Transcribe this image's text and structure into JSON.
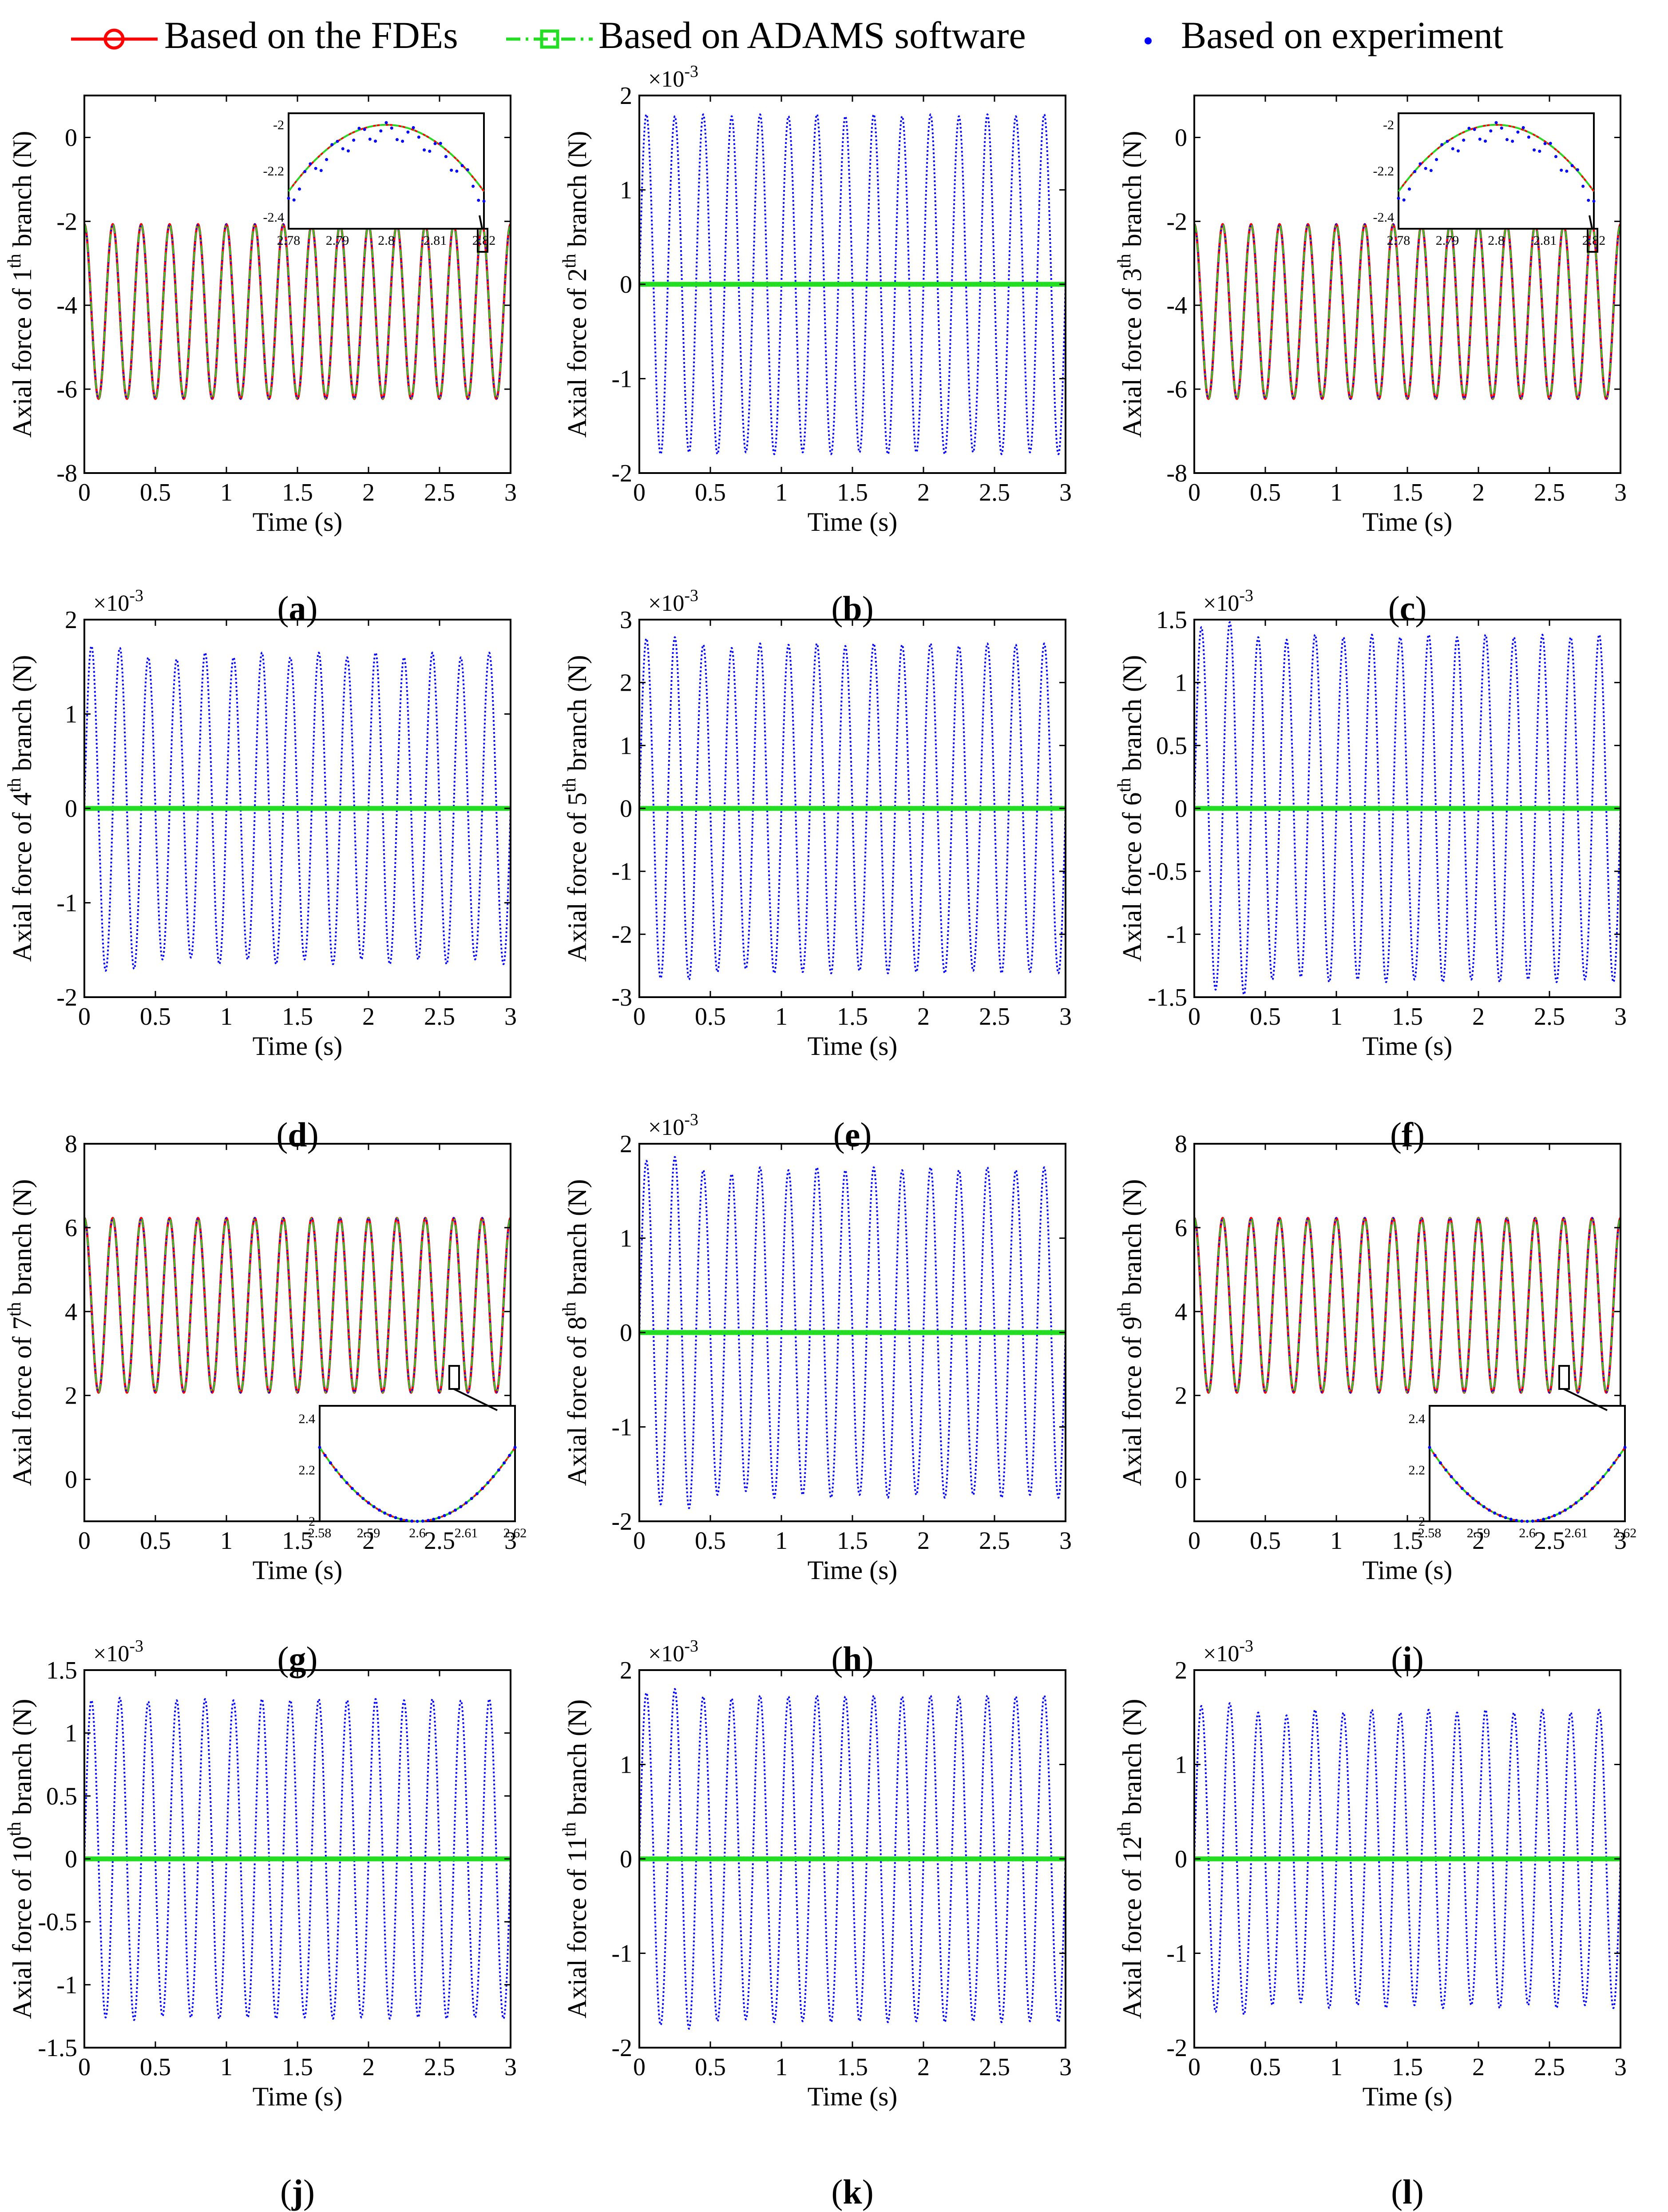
{
  "legend": {
    "entries": [
      {
        "label": "Based on the FDEs",
        "color": "#ff0000",
        "marker": "circle",
        "style": "solid"
      },
      {
        "label": "Based on ADAMS software",
        "color": "#00dd00",
        "marker": "square",
        "style": "dashdot"
      },
      {
        "label": "Based on experiment",
        "color": "#0000ff",
        "marker": "dot",
        "style": "dotted"
      }
    ]
  },
  "colors": {
    "fdes": "#ff0000",
    "adams": "#22dd22",
    "experiment": "#0000ff",
    "axis": "#000000"
  },
  "chart_data": [
    {
      "panel": "a",
      "type": "line",
      "xlabel": "Time (s)",
      "ylabel_pre": "Axial force of 1",
      "ylabel_sup": "th",
      "ylabel_post": " branch (N)",
      "exponent": null,
      "xlim": [
        0,
        3
      ],
      "ylim": [
        -8,
        1
      ],
      "xticks": [
        0,
        0.5,
        1,
        1.5,
        2,
        2.5,
        3
      ],
      "xtick_labels": [
        "0",
        "0.5",
        "1",
        "1.5",
        "2",
        "2.5",
        "3"
      ],
      "yticks": [
        -8,
        -6,
        -4,
        -2,
        0
      ],
      "ytick_labels": [
        "-8",
        "-6",
        "-4",
        "-2",
        "0"
      ],
      "period": 0.2,
      "centre": -4.15,
      "amplitude": 2.08,
      "phase": 0.5,
      "exp_amplitudes": [],
      "inset": {
        "xlim": [
          2.78,
          2.82
        ],
        "ylim": [
          -2.45,
          -1.95
        ],
        "xticks": [
          2.78,
          2.79,
          2.8,
          2.81,
          2.82
        ],
        "xtick_labels": [
          "2.78",
          "2.79",
          "2.8",
          "2.81",
          "2.82"
        ],
        "yticks": [
          -2.4,
          -2.2,
          -2
        ],
        "ytick_labels": [
          "-2.4",
          "-2.2",
          "-2"
        ],
        "mode": "peak"
      }
    },
    {
      "panel": "b",
      "type": "line",
      "xlabel": "Time (s)",
      "ylabel_pre": "Axial force of 2",
      "ylabel_sup": "th",
      "ylabel_post": " branch (N)",
      "exponent": "×10",
      "exponent_sup": "-3",
      "xlim": [
        0,
        3
      ],
      "ylim": [
        -2,
        2
      ],
      "xticks": [
        0,
        0.5,
        1,
        1.5,
        2,
        2.5,
        3
      ],
      "xtick_labels": [
        "0",
        "0.5",
        "1",
        "1.5",
        "2",
        "2.5",
        "3"
      ],
      "yticks": [
        -2,
        -1,
        0,
        1,
        2
      ],
      "ytick_labels": [
        "-2",
        "-1",
        "0",
        "1",
        "2"
      ],
      "period": 0.2,
      "centre": 0,
      "amplitude": 0,
      "phase": 0.25,
      "exp_amplitudes": [
        1.8,
        1.78,
        1.8,
        1.78,
        1.8,
        1.78,
        1.8,
        1.78,
        1.8,
        1.78,
        1.8,
        1.78,
        1.8,
        1.78,
        1.8
      ],
      "inset": null
    },
    {
      "panel": "c",
      "type": "line",
      "xlabel": "Time (s)",
      "ylabel_pre": "Axial force of 3",
      "ylabel_sup": "th",
      "ylabel_post": " branch (N)",
      "exponent": null,
      "xlim": [
        0,
        3
      ],
      "ylim": [
        -8,
        1
      ],
      "xticks": [
        0,
        0.5,
        1,
        1.5,
        2,
        2.5,
        3
      ],
      "xtick_labels": [
        "0",
        "0.5",
        "1",
        "1.5",
        "2",
        "2.5",
        "3"
      ],
      "yticks": [
        -8,
        -6,
        -4,
        -2,
        0
      ],
      "ytick_labels": [
        "-8",
        "-6",
        "-4",
        "-2",
        "0"
      ],
      "period": 0.2,
      "centre": -4.15,
      "amplitude": 2.08,
      "phase": 0.5,
      "exp_amplitudes": [],
      "inset": {
        "xlim": [
          2.78,
          2.82
        ],
        "ylim": [
          -2.45,
          -1.95
        ],
        "xticks": [
          2.78,
          2.79,
          2.8,
          2.81,
          2.82
        ],
        "xtick_labels": [
          "2.78",
          "2.79",
          "2.8",
          "2.81",
          "2.82"
        ],
        "yticks": [
          -2.4,
          -2.2,
          -2
        ],
        "ytick_labels": [
          "-2.4",
          "-2.2",
          "-2"
        ],
        "mode": "peak"
      }
    },
    {
      "panel": "d",
      "type": "line",
      "xlabel": "Time (s)",
      "ylabel_pre": "Axial force of 4",
      "ylabel_sup": "th",
      "ylabel_post": " branch (N)",
      "exponent": "×10",
      "exponent_sup": "-3",
      "xlim": [
        0,
        3
      ],
      "ylim": [
        -2,
        2
      ],
      "xticks": [
        0,
        0.5,
        1,
        1.5,
        2,
        2.5,
        3
      ],
      "xtick_labels": [
        "0",
        "0.5",
        "1",
        "1.5",
        "2",
        "2.5",
        "3"
      ],
      "yticks": [
        -2,
        -1,
        0,
        1,
        2
      ],
      "ytick_labels": [
        "-2",
        "-1",
        "0",
        "1",
        "2"
      ],
      "period": 0.2,
      "centre": 0,
      "amplitude": 0,
      "phase": 0.25,
      "exp_amplitudes": [
        1.72,
        1.7,
        1.6,
        1.58,
        1.65,
        1.6,
        1.65,
        1.6,
        1.65,
        1.6,
        1.65,
        1.6,
        1.65,
        1.6,
        1.65
      ],
      "inset": null
    },
    {
      "panel": "e",
      "type": "line",
      "xlabel": "Time (s)",
      "ylabel_pre": "Axial force of 5",
      "ylabel_sup": "th",
      "ylabel_post": " branch (N)",
      "exponent": "×10",
      "exponent_sup": "-3",
      "xlim": [
        0,
        3
      ],
      "ylim": [
        -3,
        3
      ],
      "xticks": [
        0,
        0.5,
        1,
        1.5,
        2,
        2.5,
        3
      ],
      "xtick_labels": [
        "0",
        "0.5",
        "1",
        "1.5",
        "2",
        "2.5",
        "3"
      ],
      "yticks": [
        -3,
        -2,
        -1,
        0,
        1,
        2,
        3
      ],
      "ytick_labels": [
        "-3",
        "-2",
        "-1",
        "0",
        "1",
        "2",
        "3"
      ],
      "period": 0.2,
      "centre": 0,
      "amplitude": 0,
      "phase": 0.25,
      "exp_amplitudes": [
        2.7,
        2.72,
        2.6,
        2.55,
        2.62,
        2.6,
        2.62,
        2.58,
        2.62,
        2.6,
        2.62,
        2.58,
        2.62,
        2.6,
        2.62
      ],
      "inset": null
    },
    {
      "panel": "f",
      "type": "line",
      "xlabel": "Time (s)",
      "ylabel_pre": "Axial force of 6",
      "ylabel_sup": "th",
      "ylabel_post": " branch (N)",
      "exponent": "×10",
      "exponent_sup": "-3",
      "xlim": [
        0,
        3
      ],
      "ylim": [
        -1.5,
        1.5
      ],
      "xticks": [
        0,
        0.5,
        1,
        1.5,
        2,
        2.5,
        3
      ],
      "xtick_labels": [
        "0",
        "0.5",
        "1",
        "1.5",
        "2",
        "2.5",
        "3"
      ],
      "yticks": [
        -1.5,
        -1,
        -0.5,
        0,
        0.5,
        1,
        1.5
      ],
      "ytick_labels": [
        "-1.5",
        "-1",
        "-0.5",
        "0",
        "0.5",
        "1",
        "1.5"
      ],
      "period": 0.2,
      "centre": 0,
      "amplitude": 0,
      "phase": 0.25,
      "exp_amplitudes": [
        1.44,
        1.48,
        1.36,
        1.34,
        1.38,
        1.36,
        1.38,
        1.36,
        1.38,
        1.36,
        1.38,
        1.36,
        1.38,
        1.36,
        1.38
      ],
      "inset": null
    },
    {
      "panel": "g",
      "type": "line",
      "xlabel": "Time (s)",
      "ylabel_pre": "Axial force of 7",
      "ylabel_sup": "th",
      "ylabel_post": " branch (N)",
      "exponent": null,
      "xlim": [
        0,
        3
      ],
      "ylim": [
        -1,
        8
      ],
      "xticks": [
        0,
        0.5,
        1,
        1.5,
        2,
        2.5,
        3
      ],
      "xtick_labels": [
        "0",
        "0.5",
        "1",
        "1.5",
        "2",
        "2.5",
        "3"
      ],
      "yticks": [
        0,
        2,
        4,
        6,
        8
      ],
      "ytick_labels": [
        "0",
        "2",
        "4",
        "6",
        "8"
      ],
      "period": 0.2,
      "centre": 4.15,
      "amplitude": 2.08,
      "phase": 0.5,
      "exp_amplitudes": [],
      "inset": {
        "xlim": [
          2.58,
          2.62
        ],
        "ylim": [
          2.0,
          2.45
        ],
        "xticks": [
          2.58,
          2.59,
          2.6,
          2.61,
          2.62
        ],
        "xtick_labels": [
          "2.58",
          "2.59",
          "2.6",
          "2.61",
          "2.62"
        ],
        "yticks": [
          2,
          2.2,
          2.4
        ],
        "ytick_labels": [
          "2",
          "2.2",
          "2.4"
        ],
        "mode": "valley"
      }
    },
    {
      "panel": "h",
      "type": "line",
      "xlabel": "Time (s)",
      "ylabel_pre": "Axial force of 8",
      "ylabel_sup": "th",
      "ylabel_post": " branch (N)",
      "exponent": "×10",
      "exponent_sup": "-3",
      "xlim": [
        0,
        3
      ],
      "ylim": [
        -2,
        2
      ],
      "xticks": [
        0,
        0.5,
        1,
        1.5,
        2,
        2.5,
        3
      ],
      "xtick_labels": [
        "0",
        "0.5",
        "1",
        "1.5",
        "2",
        "2.5",
        "3"
      ],
      "yticks": [
        -2,
        -1,
        0,
        1,
        2
      ],
      "ytick_labels": [
        "-2",
        "-1",
        "0",
        "1",
        "2"
      ],
      "period": 0.2,
      "centre": 0,
      "amplitude": 0,
      "phase": 0.25,
      "exp_amplitudes": [
        1.82,
        1.86,
        1.72,
        1.68,
        1.75,
        1.72,
        1.75,
        1.72,
        1.75,
        1.72,
        1.75,
        1.72,
        1.75,
        1.72,
        1.75
      ],
      "inset": null
    },
    {
      "panel": "i",
      "type": "line",
      "xlabel": "Time (s)",
      "ylabel_pre": "Axial force of 9",
      "ylabel_sup": "th",
      "ylabel_post": " branch (N)",
      "exponent": null,
      "xlim": [
        0,
        3
      ],
      "ylim": [
        -1,
        8
      ],
      "xticks": [
        0,
        0.5,
        1,
        1.5,
        2,
        2.5,
        3
      ],
      "xtick_labels": [
        "0",
        "0.5",
        "1",
        "1.5",
        "2",
        "2.5",
        "3"
      ],
      "yticks": [
        0,
        2,
        4,
        6,
        8
      ],
      "ytick_labels": [
        "0",
        "2",
        "4",
        "6",
        "8"
      ],
      "period": 0.2,
      "centre": 4.15,
      "amplitude": 2.08,
      "phase": 0.5,
      "exp_amplitudes": [],
      "inset": {
        "xlim": [
          2.58,
          2.62
        ],
        "ylim": [
          2.0,
          2.45
        ],
        "xticks": [
          2.58,
          2.59,
          2.6,
          2.61,
          2.62
        ],
        "xtick_labels": [
          "2.58",
          "2.59",
          "2.6",
          "2.61",
          "2.62"
        ],
        "yticks": [
          2,
          2.2,
          2.4
        ],
        "ytick_labels": [
          "2",
          "2.2",
          "2.4"
        ],
        "mode": "valley"
      }
    },
    {
      "panel": "j",
      "type": "line",
      "xlabel": "Time (s)",
      "ylabel_pre": "Axial force of 10",
      "ylabel_sup": "th",
      "ylabel_post": " branch (N)",
      "exponent": "×10",
      "exponent_sup": "-3",
      "xlim": [
        0,
        3
      ],
      "ylim": [
        -1.5,
        1.5
      ],
      "xticks": [
        0,
        0.5,
        1,
        1.5,
        2,
        2.5,
        3
      ],
      "xtick_labels": [
        "0",
        "0.5",
        "1",
        "1.5",
        "2",
        "2.5",
        "3"
      ],
      "yticks": [
        -1.5,
        -1,
        -0.5,
        0,
        0.5,
        1,
        1.5
      ],
      "ytick_labels": [
        "-1.5",
        "-1",
        "-0.5",
        "0",
        "0.5",
        "1",
        "1.5"
      ],
      "period": 0.2,
      "centre": 0,
      "amplitude": 0,
      "phase": 0.25,
      "exp_amplitudes": [
        1.26,
        1.28,
        1.25,
        1.26,
        1.27,
        1.26,
        1.27,
        1.26,
        1.27,
        1.26,
        1.27,
        1.26,
        1.27,
        1.26,
        1.27
      ],
      "inset": null
    },
    {
      "panel": "k",
      "type": "line",
      "xlabel": "Time (s)",
      "ylabel_pre": "Axial force of 11",
      "ylabel_sup": "th",
      "ylabel_post": " branch (N)",
      "exponent": "×10",
      "exponent_sup": "-3",
      "xlim": [
        0,
        3
      ],
      "ylim": [
        -2,
        2
      ],
      "xticks": [
        0,
        0.5,
        1,
        1.5,
        2,
        2.5,
        3
      ],
      "xtick_labels": [
        "0",
        "0.5",
        "1",
        "1.5",
        "2",
        "2.5",
        "3"
      ],
      "yticks": [
        -2,
        -1,
        0,
        1,
        2
      ],
      "ytick_labels": [
        "-2",
        "-1",
        "0",
        "1",
        "2"
      ],
      "period": 0.2,
      "centre": 0,
      "amplitude": 0,
      "phase": 0.25,
      "exp_amplitudes": [
        1.76,
        1.8,
        1.72,
        1.7,
        1.73,
        1.72,
        1.73,
        1.72,
        1.73,
        1.72,
        1.73,
        1.72,
        1.73,
        1.72,
        1.73
      ],
      "inset": null
    },
    {
      "panel": "l",
      "type": "line",
      "xlabel": "Time (s)",
      "ylabel_pre": "Axial force of 12",
      "ylabel_sup": "th",
      "ylabel_post": " branch (N)",
      "exponent": "×10",
      "exponent_sup": "-3",
      "xlim": [
        0,
        3
      ],
      "ylim": [
        -2,
        2
      ],
      "xticks": [
        0,
        0.5,
        1,
        1.5,
        2,
        2.5,
        3
      ],
      "xtick_labels": [
        "0",
        "0.5",
        "1",
        "1.5",
        "2",
        "2.5",
        "3"
      ],
      "yticks": [
        -2,
        -1,
        0,
        1,
        2
      ],
      "ytick_labels": [
        "-2",
        "-1",
        "0",
        "1",
        "2"
      ],
      "period": 0.2,
      "centre": 0,
      "amplitude": 0,
      "phase": 0.25,
      "exp_amplitudes": [
        1.62,
        1.65,
        1.55,
        1.52,
        1.58,
        1.55,
        1.58,
        1.55,
        1.58,
        1.55,
        1.58,
        1.55,
        1.58,
        1.55,
        1.58
      ],
      "inset": null
    }
  ],
  "captions": [
    "a",
    "b",
    "c",
    "d",
    "e",
    "f",
    "g",
    "h",
    "i",
    "j",
    "k",
    "l"
  ]
}
